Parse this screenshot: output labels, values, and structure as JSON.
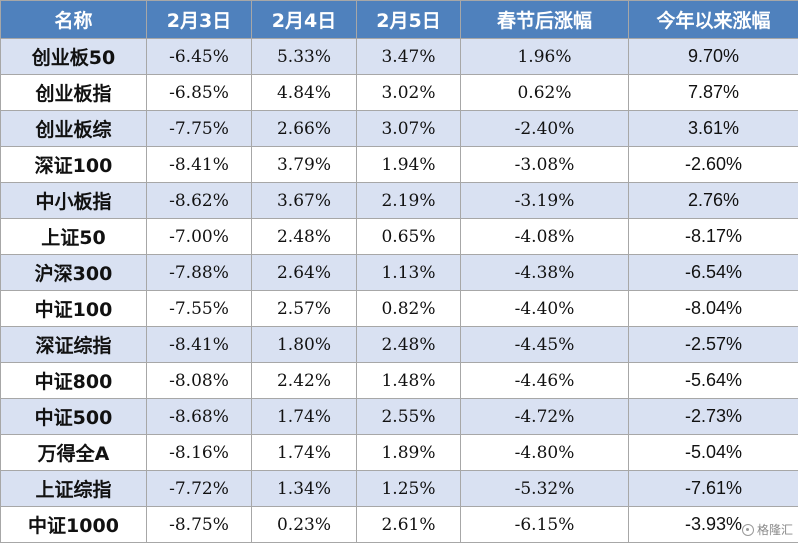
{
  "table": {
    "headers": [
      "名称",
      "2月3日",
      "2月4日",
      "2月5日",
      "春节后涨幅",
      "今年以来涨幅"
    ],
    "rows": [
      [
        "创业板50",
        "-6.45%",
        "5.33%",
        "3.47%",
        "1.96%",
        "9.70%"
      ],
      [
        "创业板指",
        "-6.85%",
        "4.84%",
        "3.02%",
        "0.62%",
        "7.87%"
      ],
      [
        "创业板综",
        "-7.75%",
        "2.66%",
        "3.07%",
        "-2.40%",
        "3.61%"
      ],
      [
        "深证100",
        "-8.41%",
        "3.79%",
        "1.94%",
        "-3.08%",
        "-2.60%"
      ],
      [
        "中小板指",
        "-8.62%",
        "3.67%",
        "2.19%",
        "-3.19%",
        "2.76%"
      ],
      [
        "上证50",
        "-7.00%",
        "2.48%",
        "0.65%",
        "-4.08%",
        "-8.17%"
      ],
      [
        "沪深300",
        "-7.88%",
        "2.64%",
        "1.13%",
        "-4.38%",
        "-6.54%"
      ],
      [
        "中证100",
        "-7.55%",
        "2.57%",
        "0.82%",
        "-4.40%",
        "-8.04%"
      ],
      [
        "深证综指",
        "-8.41%",
        "1.80%",
        "2.48%",
        "-4.45%",
        "-2.57%"
      ],
      [
        "中证800",
        "-8.08%",
        "2.42%",
        "1.48%",
        "-4.46%",
        "-5.64%"
      ],
      [
        "中证500",
        "-8.68%",
        "1.74%",
        "2.55%",
        "-4.72%",
        "-2.73%"
      ],
      [
        "万得全A",
        "-8.16%",
        "1.74%",
        "1.89%",
        "-4.80%",
        "-5.04%"
      ],
      [
        "上证综指",
        "-7.72%",
        "1.34%",
        "1.25%",
        "-5.32%",
        "-7.61%"
      ],
      [
        "中证1000",
        "-8.75%",
        "0.23%",
        "2.61%",
        "-6.15%",
        "-3.93%"
      ]
    ]
  },
  "watermark": {
    "text": "格隆汇",
    "icon": "gelonghui-logo-icon"
  },
  "colors": {
    "header_bg": "#4f81bd",
    "header_text": "#ffffff",
    "row_band": "#d9e1f2",
    "row_plain": "#ffffff",
    "grid": "#a7a7a7"
  }
}
